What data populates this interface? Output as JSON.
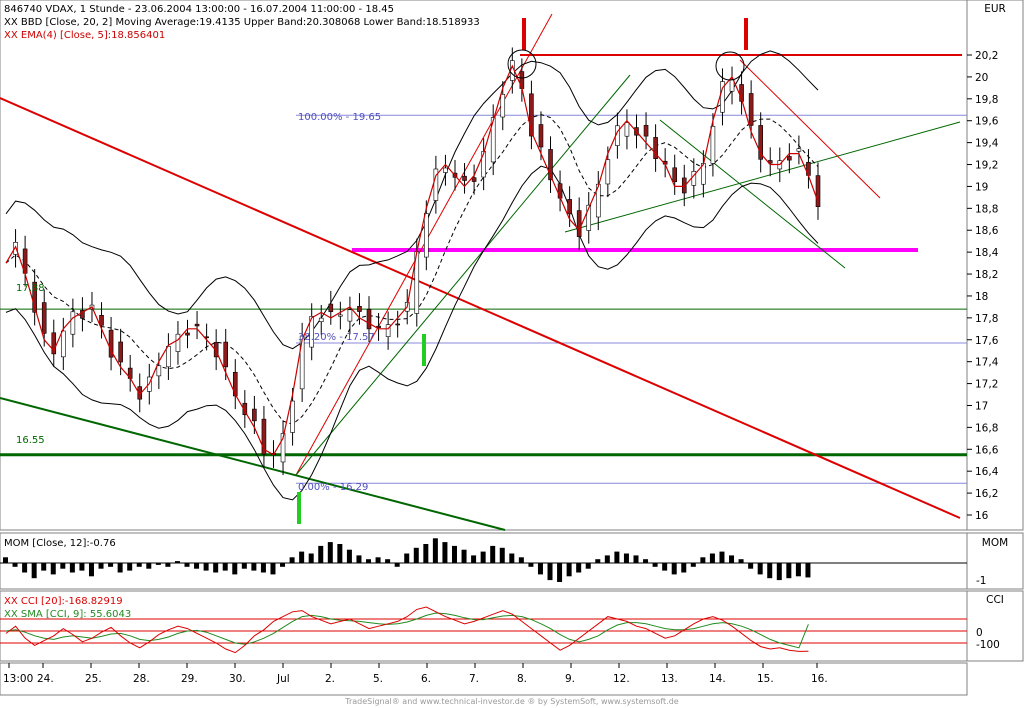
{
  "header": {
    "line1": "846740  VDAX, 1 Stunde - 23.06.2004 13:00:00 - 16.07.2004 11:00:00 - 18.45",
    "line2": "XX BBD [Close, 20, 2] Moving Average:19.4135 Upper Band:20.308068 Lower Band:18.518933",
    "line3": "XX EMA(4) [Close, 5]:18.856401",
    "currency": "EUR"
  },
  "colors": {
    "background": "#ffffff",
    "candle_up": "#ffffff",
    "candle_down": "#8b1a1a",
    "bollinger": "#000000",
    "ema": "#cc0000",
    "trend_red": "#dd0000",
    "trend_green": "#006600",
    "support_magenta": "#ff00ff",
    "fib_lines": "#8888dd",
    "level_green": "#006600",
    "mom_bar": "#000000",
    "cci_red": "#dd0000",
    "cci_green": "#228b22"
  },
  "annotations": {
    "level_17_88": "17.88",
    "level_16_55": "16.55",
    "fib_100": "100.00% - 19.65",
    "fib_38": "38.20% - 17.57",
    "fib_0": "0.00% - 16.29"
  },
  "momentum_panel": {
    "title": "MOM [Close, 12]:-0.76",
    "label": "MOM",
    "tick": "-1"
  },
  "cci_panel": {
    "title1": "XX CCI [20]:-168.82919",
    "title2": "XX SMA [CCI, 9]: 55.6043",
    "label": "CCI",
    "ticks": [
      "0",
      "-100"
    ]
  },
  "footer": "TradeSignal® and www.technical-investor.de ® by SystemSoft, www.systemsoft.de",
  "chart_data": {
    "type": "candlestick",
    "title": "846740  VDAX, 1 Stunde - 23.06.2004 13:00:00 - 16.07.2004 11:00:00 - 18.45",
    "ylabel": "EUR",
    "ylim": [
      15.9,
      20.45
    ],
    "yticks": [
      "20,2",
      "20",
      "19,8",
      "19,6",
      "19,4",
      "19,2",
      "19",
      "18,8",
      "18,6",
      "18,4",
      "18,2",
      "18",
      "17,8",
      "17,6",
      "17,4",
      "17,2",
      "17",
      "16,8",
      "16,6",
      "16,4",
      "16,2",
      "16"
    ],
    "xticks": [
      "13:00",
      "24.",
      "25.",
      "28.",
      "29.",
      "30.",
      "Jul",
      "2.",
      "5.",
      "6.",
      "7.",
      "8.",
      "9.",
      "12.",
      "13.",
      "14.",
      "15.",
      "16."
    ],
    "series": [
      {
        "name": "EMA(4)",
        "values": [
          18.3,
          18.45,
          18.2,
          17.9,
          17.6,
          17.5,
          17.7,
          17.8,
          17.85,
          17.9,
          17.7,
          17.5,
          17.35,
          17.25,
          17.1,
          17.2,
          17.4,
          17.55,
          17.6,
          17.7,
          17.7,
          17.6,
          17.5,
          17.3,
          17.1,
          16.95,
          16.8,
          16.6,
          16.55,
          16.7,
          17.1,
          17.6,
          17.8,
          17.85,
          17.8,
          17.85,
          17.9,
          17.8,
          17.75,
          17.7,
          17.7,
          17.8,
          17.9,
          18.4,
          18.8,
          19.1,
          19.2,
          19.1,
          19.0,
          19.1,
          19.3,
          19.6,
          19.9,
          20.1,
          19.9,
          19.5,
          19.3,
          19.1,
          18.9,
          18.7,
          18.6,
          18.8,
          19.0,
          19.3,
          19.5,
          19.6,
          19.5,
          19.4,
          19.3,
          19.2,
          19.0,
          19.0,
          19.1,
          19.2,
          19.6,
          19.9,
          20.0,
          19.8,
          19.5,
          19.3,
          19.2,
          19.2,
          19.3,
          19.3,
          19.1,
          18.86
        ]
      },
      {
        "name": "MOM [Close, 12]",
        "values": [
          0.3,
          -0.2,
          -0.5,
          -0.8,
          -0.4,
          -0.6,
          -0.3,
          -0.5,
          -0.4,
          -0.7,
          -0.3,
          -0.2,
          -0.5,
          -0.4,
          -0.2,
          -0.3,
          -0.1,
          -0.2,
          0.1,
          -0.2,
          -0.3,
          -0.4,
          -0.5,
          -0.4,
          -0.6,
          -0.3,
          -0.4,
          -0.5,
          -0.6,
          -0.2,
          0.3,
          0.6,
          0.5,
          0.9,
          1.1,
          1.0,
          0.7,
          0.4,
          0.2,
          0.3,
          0.2,
          -0.2,
          0.5,
          0.8,
          1.0,
          1.3,
          1.1,
          0.9,
          0.7,
          0.4,
          0.6,
          0.9,
          0.8,
          0.5,
          0.3,
          -0.2,
          -0.6,
          -0.9,
          -1.0,
          -0.7,
          -0.5,
          -0.3,
          0.2,
          0.4,
          0.6,
          0.5,
          0.4,
          0.2,
          -0.2,
          -0.4,
          -0.6,
          -0.5,
          -0.2,
          0.3,
          0.5,
          0.6,
          0.4,
          0.2,
          -0.3,
          -0.6,
          -0.8,
          -0.9,
          -0.8,
          -0.7,
          -0.76
        ]
      },
      {
        "name": "CCI [20]",
        "values": [
          -20,
          40,
          -60,
          -120,
          -80,
          -40,
          20,
          -30,
          -90,
          -60,
          -10,
          30,
          -40,
          -100,
          -140,
          -90,
          -30,
          10,
          40,
          20,
          -20,
          -60,
          -100,
          -150,
          -180,
          -120,
          -40,
          10,
          80,
          120,
          160,
          170,
          120,
          90,
          60,
          80,
          100,
          60,
          20,
          40,
          60,
          80,
          120,
          180,
          200,
          160,
          120,
          90,
          60,
          80,
          110,
          140,
          170,
          140,
          80,
          20,
          -40,
          -100,
          -160,
          -120,
          -60,
          0,
          60,
          120,
          100,
          80,
          40,
          20,
          -20,
          -60,
          -40,
          10,
          60,
          100,
          120,
          90,
          40,
          -20,
          -80,
          -130,
          -150,
          -140,
          -160,
          -170,
          -169
        ]
      },
      {
        "name": "SMA [CCI, 9]",
        "values": [
          0,
          10,
          -10,
          -40,
          -60,
          -70,
          -50,
          -40,
          -50,
          -60,
          -45,
          -25,
          -20,
          -40,
          -70,
          -80,
          -70,
          -50,
          -20,
          0,
          5,
          -10,
          -40,
          -70,
          -100,
          -110,
          -90,
          -60,
          -20,
          30,
          80,
          120,
          130,
          120,
          100,
          90,
          85,
          80,
          70,
          60,
          55,
          60,
          75,
          100,
          130,
          150,
          145,
          130,
          110,
          95,
          95,
          110,
          125,
          130,
          120,
          95,
          60,
          20,
          -30,
          -70,
          -90,
          -70,
          -40,
          10,
          50,
          70,
          70,
          60,
          40,
          20,
          10,
          10,
          20,
          40,
          60,
          70,
          60,
          40,
          10,
          -30,
          -70,
          -100,
          -120,
          -140,
          55.6
        ]
      }
    ]
  }
}
